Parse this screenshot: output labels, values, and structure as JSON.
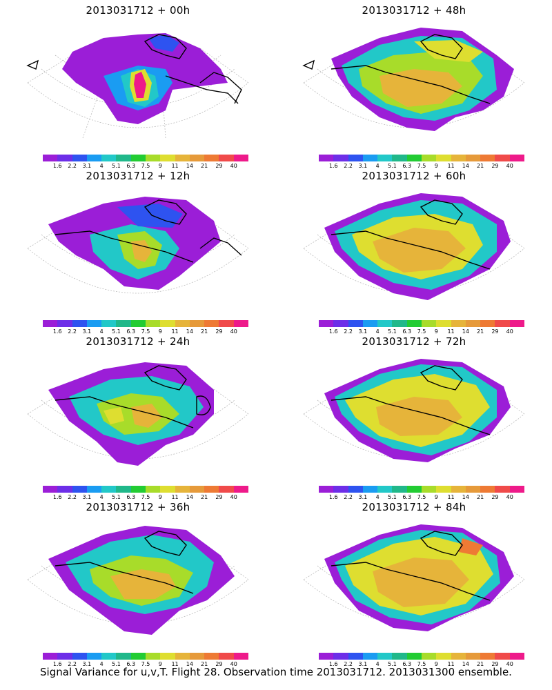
{
  "caption": "Signal Variance for u,v,T. Flight 28. Observation time 2013031712. 2013031300 ensemble.",
  "colorbar": {
    "colors": [
      "#9b1ed7",
      "#6d2ee8",
      "#2e53f0",
      "#1a9cf2",
      "#22c8c8",
      "#20b88a",
      "#22cc33",
      "#a8dc2a",
      "#dede30",
      "#e6b43a",
      "#e69a3a",
      "#ee7a34",
      "#f04a4a",
      "#ee1a8a"
    ],
    "labels": [
      "1.6",
      "2.2",
      "3.1",
      "4",
      "5.1",
      "6.3",
      "7.5",
      "9",
      "11",
      "14",
      "21",
      "29",
      "40"
    ]
  },
  "panels": [
    {
      "base": "2013031712",
      "lead": "00h",
      "title": "2013031712 + 00h"
    },
    {
      "base": "2013031712",
      "lead": "48h",
      "title": "2013031712 + 48h"
    },
    {
      "base": "2013031712",
      "lead": "12h",
      "title": "2013031712 + 12h"
    },
    {
      "base": "2013031712",
      "lead": "60h",
      "title": "2013031712 + 60h"
    },
    {
      "base": "2013031712",
      "lead": "24h",
      "title": "2013031712 + 24h"
    },
    {
      "base": "2013031712",
      "lead": "72h",
      "title": "2013031712 + 72h"
    },
    {
      "base": "2013031712",
      "lead": "36h",
      "title": "2013031712 + 36h"
    },
    {
      "base": "2013031712",
      "lead": "84h",
      "title": "2013031712 + 84h"
    }
  ]
}
